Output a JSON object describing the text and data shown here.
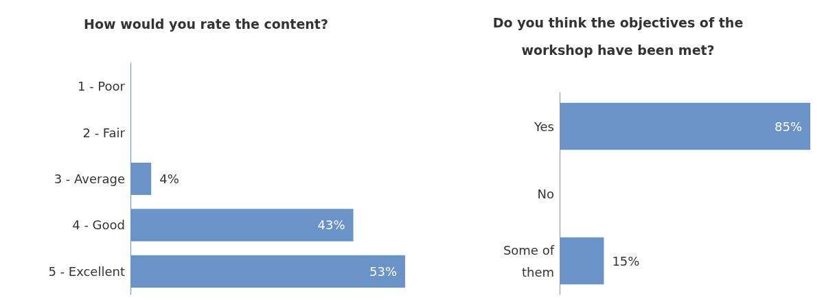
{
  "chart_data": [
    {
      "type": "bar",
      "orientation": "horizontal",
      "title": "How would you rate the content?",
      "categories": [
        "1 - Poor",
        "2 - Fair",
        "3 - Average",
        "4 - Good",
        "5 - Excellent"
      ],
      "values": [
        0,
        0,
        4,
        43,
        53
      ],
      "value_labels": [
        null,
        null,
        "4%",
        "43%",
        "53%"
      ],
      "color": "#6a93c8"
    },
    {
      "type": "bar",
      "orientation": "horizontal",
      "title": "Do you think the objectives of the\nworkshop have been met?",
      "categories": [
        "Yes",
        "No",
        "Some of\nthem"
      ],
      "values": [
        85,
        0,
        15
      ],
      "value_labels": [
        "85%",
        null,
        "15%"
      ],
      "color": "#6a93c8"
    }
  ]
}
